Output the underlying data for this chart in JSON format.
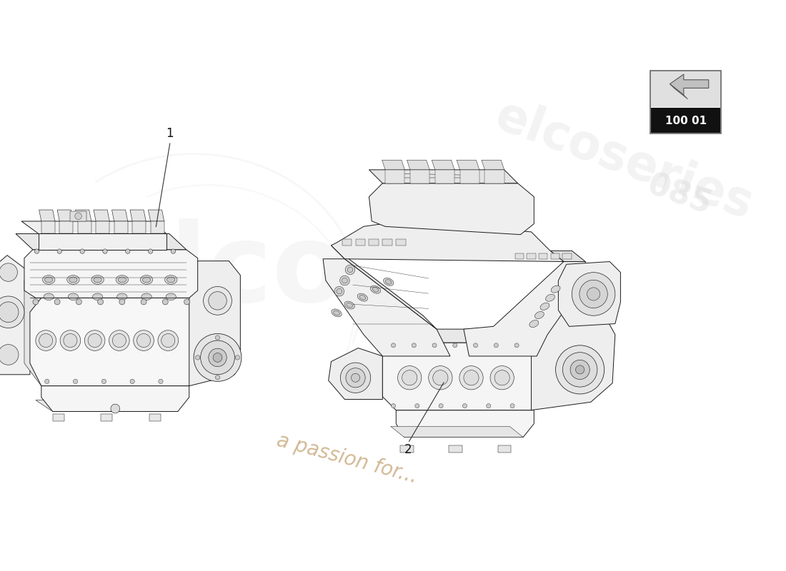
{
  "bg_color": "#ffffff",
  "watermark_text": "a passion for...",
  "watermark_color": "#c8a87a",
  "part_number_label": "100 01",
  "label1": "1",
  "label2": "2",
  "line_color": "#1a1a1a",
  "light_fill": "#f8f8f8",
  "mid_fill": "#eeeeee",
  "dark_fill": "#dddddd",
  "figure_width": 11.0,
  "figure_height": 8.0,
  "dpi": 100,
  "elco_watermark_color": "#e8e8e8",
  "elco_text_color": "#d0d0d0"
}
